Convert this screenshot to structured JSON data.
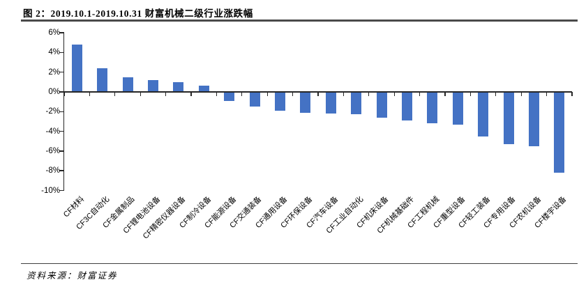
{
  "header": {
    "title": "图 2：2019.10.1-2019.10.31 财富机械二级行业涨跌幅"
  },
  "footer": {
    "source": "资料来源：财富证券"
  },
  "colors": {
    "bar": "#4472C4",
    "axis": "#262626",
    "title_rule": "#4a4a4a",
    "footer_rule": "#3f3f3f"
  },
  "chart_data": {
    "type": "bar",
    "title": "图 2：2019.10.1-2019.10.31 财富机械二级行业涨跌幅",
    "categories": [
      "CF材料",
      "CF3C自动化",
      "CF金属制品",
      "CF锂电池设备",
      "CF精密仪器设备",
      "CF制冷设备",
      "CF能源设备",
      "CF交通装备",
      "CF通用设备",
      "CF环保设备",
      "CF汽车设备",
      "CF工业自动化",
      "CF机床设备",
      "CF机械基础件",
      "CF工程机械",
      "CF重型设备",
      "CF轻工装备",
      "CF专用设备",
      "CF农机设备",
      "CF楼宇设备"
    ],
    "values": [
      4.8,
      2.4,
      1.5,
      1.2,
      1.0,
      0.6,
      -0.9,
      -1.5,
      -1.9,
      -2.1,
      -2.2,
      -2.3,
      -2.6,
      -2.9,
      -3.2,
      -3.3,
      -4.5,
      -5.3,
      -5.5,
      -8.2
    ],
    "unit": "%",
    "xlabel": "",
    "ylabel": "",
    "ylim": [
      -10,
      6
    ],
    "yticks": [
      6,
      4,
      2,
      0,
      -2,
      -4,
      -6,
      -8,
      -10
    ],
    "ytick_labels": [
      "6%",
      "4%",
      "2%",
      "0%",
      "-2%",
      "-4%",
      "-6%",
      "-8%",
      "-10%"
    ],
    "grid": false,
    "legend_position": "none",
    "bar_color": "#4472C4"
  }
}
